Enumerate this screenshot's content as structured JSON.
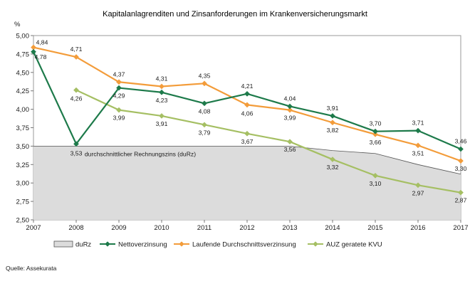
{
  "chart_data": {
    "type": "line",
    "title": "Kapitalanlagrenditen  und Zinsanforderungen im Krankenversicherungsmarkt",
    "ylabel": "%",
    "xlabel": "",
    "ylim": [
      2.5,
      5.0
    ],
    "yticks": [
      "2,50",
      "2,75",
      "3,00",
      "3,25",
      "3,50",
      "3,75",
      "4,00",
      "4,25",
      "4,50",
      "4,75",
      "5,00"
    ],
    "x": [
      "2007",
      "2008",
      "2009",
      "2010",
      "2011",
      "2012",
      "2013",
      "2014",
      "2015",
      "2016",
      "2017"
    ],
    "area": {
      "name": "duRz",
      "annotation": "durchschnittlicher Rechnungszins (duRz)",
      "x": [
        "2007",
        "2008",
        "2009",
        "2010",
        "2011",
        "2012",
        "2013",
        "2014",
        "2015",
        "2016",
        "2017"
      ],
      "values": [
        3.5,
        3.5,
        3.5,
        3.5,
        3.5,
        3.5,
        3.5,
        3.44,
        3.4,
        3.25,
        3.12
      ],
      "color": "#dcdcdc"
    },
    "series": [
      {
        "name": "Nettoverzinsung",
        "color": "#1d7a4a",
        "marker": "diamond",
        "x": [
          "2007",
          "2008",
          "2009",
          "2010",
          "2011",
          "2012",
          "2013",
          "2014",
          "2015",
          "2016",
          "2017"
        ],
        "values": [
          4.78,
          3.53,
          4.29,
          4.23,
          4.08,
          4.21,
          4.04,
          3.91,
          3.7,
          3.71,
          3.46
        ],
        "labels": [
          "4,78",
          "3,53",
          "4,29",
          "4,23",
          "4,08",
          "4,21",
          "4,04",
          "3,91",
          "3,70",
          "3,71",
          "3,46"
        ]
      },
      {
        "name": "Laufende Durchschnittsverzinsung",
        "color": "#f39c3a",
        "marker": "diamond",
        "x": [
          "2007",
          "2008",
          "2009",
          "2010",
          "2011",
          "2012",
          "2013",
          "2014",
          "2015",
          "2016",
          "2017"
        ],
        "values": [
          4.84,
          4.71,
          4.37,
          4.31,
          4.35,
          4.06,
          3.99,
          3.82,
          3.66,
          3.51,
          3.3
        ],
        "labels": [
          "4,84",
          "4,71",
          "4,37",
          "4,31",
          "4,35",
          "4,06",
          "3,99",
          "3,82",
          "3,66",
          "3,51",
          "3,30"
        ]
      },
      {
        "name": "AUZ geratete KVU",
        "color": "#a5bf63",
        "marker": "diamond",
        "x": [
          "2008",
          "2009",
          "2010",
          "2011",
          "2012",
          "2013",
          "2014",
          "2015",
          "2016",
          "2017"
        ],
        "values": [
          4.26,
          3.99,
          3.91,
          3.79,
          3.67,
          3.56,
          3.32,
          3.1,
          2.97,
          2.87
        ],
        "labels": [
          "4,26",
          "3,99",
          "3,91",
          "3,79",
          "3,67",
          "3,56",
          "3,32",
          "3,10",
          "2,97",
          "2,87"
        ]
      }
    ],
    "legend": [
      "duRz",
      "Nettoverzinsung",
      "Laufende Durchschnittsverzinsung",
      "AUZ geratete KVU"
    ],
    "source": "Quelle: Assekurata"
  }
}
